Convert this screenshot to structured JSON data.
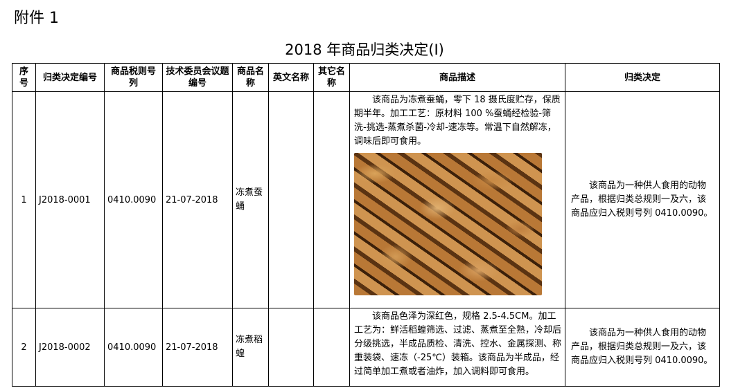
{
  "annex": "附件 1",
  "title": "2018 年商品归类决定(Ⅰ)",
  "headers": [
    "序号",
    "归类决定编号",
    "商品税则号列",
    "技术委员会议题编号",
    "商品名称",
    "英文名称",
    "其它名称",
    "商品描述",
    "归类决定"
  ],
  "rows": [
    {
      "no": "1",
      "id": "J2018-0001",
      "code": "0410.0090",
      "date": "21-07-2018",
      "name": "冻煮蚕蛹",
      "en": "",
      "other": "",
      "desc": "该商品为冻煮蚕蛹，零下 18 摄氏度贮存，保质期半年。加工工艺：原材料 100 %蚕蛹经检验-筛洗-挑选-蒸煮杀菌-冷却-速冻等。常温下自然解冻，调味后即可食用。",
      "decision": "该商品为一种供人食用的动物产品，根据归类总规则一及六，该商品应归入税则号列 0410.0090。",
      "image": "silkworm-pupae-photo"
    },
    {
      "no": "2",
      "id": "J2018-0002",
      "code": "0410.0090",
      "date": "21-07-2018",
      "name": "冻煮稻蝗",
      "en": "",
      "other": "",
      "desc": "该商品色泽为深红色，规格 2.5-4.5CM。加工工艺为：鲜活稻蝗筛选、过滤、蒸煮至全熟，冷却后分级挑选，半成品质检、清洗、控水、金属探测、称重装袋、速冻（-25℃）装箱。该商品为半成品，经过简单加工煮或者油炸，加入调料即可食用。",
      "decision": "该商品为一种供人食用的动物产品，根据归类总规则一及六，该商品应归入税则号列 0410.0090。"
    }
  ]
}
